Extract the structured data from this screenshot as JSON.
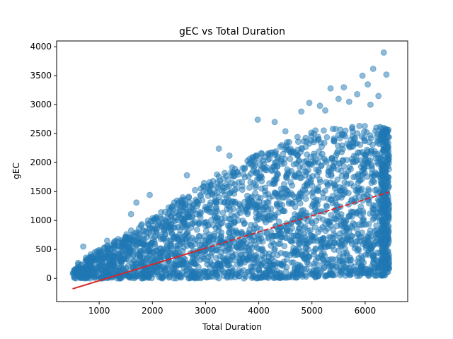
{
  "chart_data": {
    "type": "scatter",
    "title": "gEC vs Total Duration",
    "xlabel": "Total Duration",
    "ylabel": "gEC",
    "xlim": [
      200,
      6800
    ],
    "ylim": [
      -400,
      4100
    ],
    "xticks": [
      1000,
      2000,
      3000,
      4000,
      5000,
      6000
    ],
    "yticks": [
      0,
      500,
      1000,
      1500,
      2000,
      2500,
      3000,
      3500,
      4000
    ],
    "grid": false,
    "legend": "none",
    "point_color": "#1f77b4",
    "point_alpha": 0.5,
    "data_x_range": [
      500,
      6450
    ],
    "cloud_lower": [
      [
        500,
        0
      ],
      [
        2000,
        0
      ],
      [
        4000,
        0
      ],
      [
        6450,
        50
      ]
    ],
    "cloud_upper": [
      [
        500,
        230
      ],
      [
        1000,
        500
      ],
      [
        2000,
        1050
      ],
      [
        3000,
        1700
      ],
      [
        4000,
        2150
      ],
      [
        5000,
        2550
      ],
      [
        6000,
        2650
      ],
      [
        6450,
        2650
      ]
    ],
    "outliers": [
      {
        "x": 6350,
        "y": 3900
      },
      {
        "x": 6150,
        "y": 3620
      },
      {
        "x": 5950,
        "y": 3500
      },
      {
        "x": 6400,
        "y": 3520
      },
      {
        "x": 5600,
        "y": 3300
      },
      {
        "x": 5350,
        "y": 3280
      },
      {
        "x": 6050,
        "y": 3350
      },
      {
        "x": 5850,
        "y": 3180
      },
      {
        "x": 6250,
        "y": 3150
      },
      {
        "x": 5500,
        "y": 3100
      },
      {
        "x": 4950,
        "y": 3030
      },
      {
        "x": 5150,
        "y": 2980
      },
      {
        "x": 5700,
        "y": 3050
      },
      {
        "x": 6100,
        "y": 3000
      },
      {
        "x": 4800,
        "y": 2880
      },
      {
        "x": 5250,
        "y": 2900
      },
      {
        "x": 4300,
        "y": 2700
      },
      {
        "x": 4500,
        "y": 2540
      },
      {
        "x": 3980,
        "y": 2740
      },
      {
        "x": 3250,
        "y": 2240
      },
      {
        "x": 3450,
        "y": 2120
      },
      {
        "x": 2650,
        "y": 1780
      },
      {
        "x": 1950,
        "y": 1440
      },
      {
        "x": 1700,
        "y": 1310
      },
      {
        "x": 1600,
        "y": 1110
      },
      {
        "x": 700,
        "y": 550
      },
      {
        "x": 1150,
        "y": 650
      },
      {
        "x": 6200,
        "y": 50
      },
      {
        "x": 6300,
        "y": 100
      },
      {
        "x": 5900,
        "y": 150
      },
      {
        "x": 6000,
        "y": 90
      },
      {
        "x": 5700,
        "y": 180
      }
    ],
    "trendline": {
      "x": [
        500,
        6450
      ],
      "y": [
        -180,
        1490
      ],
      "color": "#d62728",
      "style": "solid-then-dashed"
    }
  }
}
